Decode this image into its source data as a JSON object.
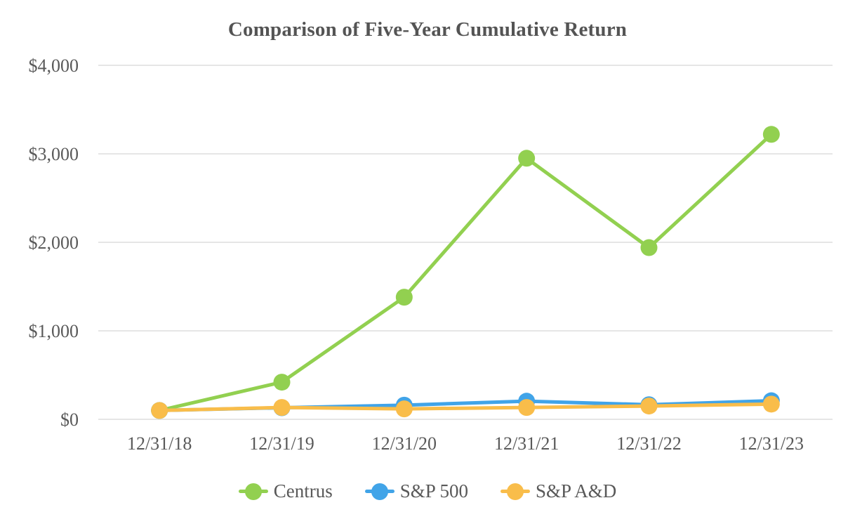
{
  "page": {
    "background": "#ffffff"
  },
  "chart_data": {
    "type": "line",
    "title": "Comparison of Five-Year Cumulative Return",
    "categories": [
      "12/31/18",
      "12/31/19",
      "12/31/20",
      "12/31/21",
      "12/31/22",
      "12/31/23"
    ],
    "series": [
      {
        "name": "Centrus",
        "color": "#92d050",
        "values": [
          100,
          420,
          1380,
          2950,
          1940,
          3220
        ]
      },
      {
        "name": "S&P 500",
        "color": "#41a4e8",
        "values": [
          100,
          131,
          160,
          205,
          165,
          210
        ]
      },
      {
        "name": "S&P A&D",
        "color": "#f9bd4a",
        "values": [
          100,
          134,
          118,
          134,
          150,
          172
        ]
      }
    ],
    "ylim": [
      0,
      4000
    ],
    "yticks": [
      {
        "value": 0,
        "label": "$0"
      },
      {
        "value": 1000,
        "label": "$1,000"
      },
      {
        "value": 2000,
        "label": "$2,000"
      },
      {
        "value": 3000,
        "label": "$3,000"
      },
      {
        "value": 4000,
        "label": "$4,000"
      }
    ],
    "grid": "horizontal",
    "legend_position": "bottom",
    "text_color": "#595959",
    "gridline_color": "#e6e6e6"
  }
}
